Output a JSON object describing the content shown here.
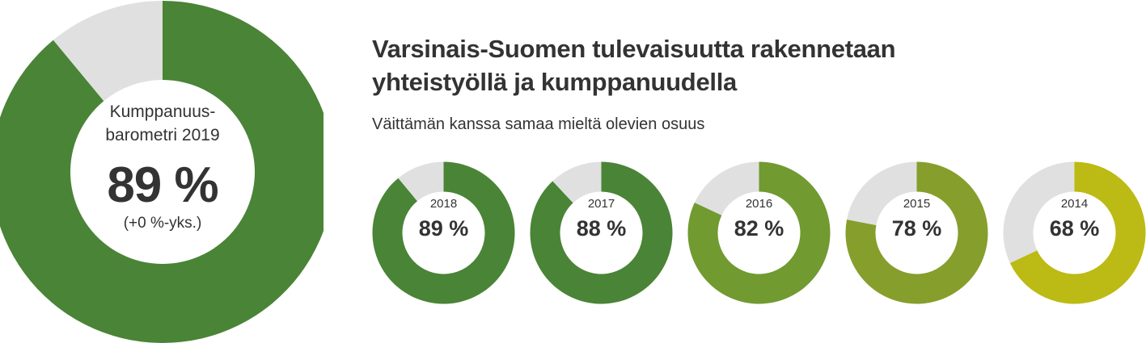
{
  "header": {
    "title_line1": "Varsinais-Suomen tulevaisuutta rakennetaan",
    "title_line2": "yhteistyöllä ja kumppanuudella",
    "subtitle": "Väittämän kanssa samaa mieltä olevien osuus"
  },
  "main_metric": {
    "label_line1": "Kumppanuus-",
    "label_line2": "barometri 2019",
    "value_text": "89 %",
    "change_text": "(+0 %-yks.)",
    "percent": 89,
    "color": "#4a8436",
    "rest_color": "#e0e0e0"
  },
  "chart_data": {
    "type": "pie",
    "title": "Varsinais-Suomen tulevaisuutta rakennetaan yhteistyöllä ja kumppanuudella",
    "subtitle": "Väittämän kanssa samaa mieltä olevien osuus",
    "unit": "%",
    "rest_color": "#e0e0e0",
    "series": [
      {
        "year": "2018",
        "value": 89,
        "label": "89 %",
        "color": "#4a8436"
      },
      {
        "year": "2017",
        "value": 88,
        "label": "88 %",
        "color": "#4a8436"
      },
      {
        "year": "2016",
        "value": 82,
        "label": "82 %",
        "color": "#719a31"
      },
      {
        "year": "2015",
        "value": 78,
        "label": "78 %",
        "color": "#869e2c"
      },
      {
        "year": "2014",
        "value": 68,
        "label": "68 %",
        "color": "#bcba14"
      }
    ]
  }
}
